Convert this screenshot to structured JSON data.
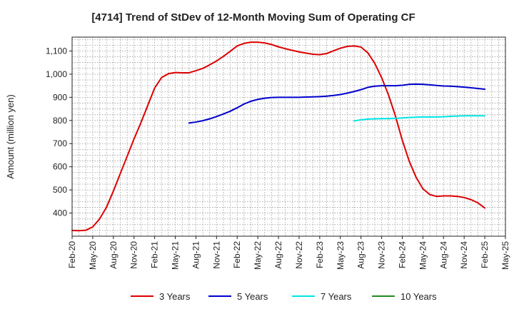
{
  "chart_data": {
    "type": "line",
    "title": "[4714]  Trend of StDev of 12-Month Moving Sum of Operating CF",
    "ylabel": "Amount (million yen)",
    "xlabel": "",
    "ylim": [
      300,
      1160
    ],
    "yticks": [
      400,
      500,
      600,
      700,
      800,
      900,
      1000,
      1100
    ],
    "ytick_labels": [
      "400",
      "500",
      "600",
      "700",
      "800",
      "900",
      "1,000",
      "1,100"
    ],
    "x_tick_labels": [
      "Feb-20",
      "May-20",
      "Aug-20",
      "Nov-20",
      "Feb-21",
      "May-21",
      "Aug-21",
      "Nov-21",
      "Feb-22",
      "May-22",
      "Aug-22",
      "Nov-22",
      "Feb-23",
      "May-23",
      "Aug-23",
      "Nov-23",
      "Feb-24",
      "May-24",
      "Aug-24",
      "Nov-24",
      "Feb-25",
      "May-25"
    ],
    "x_start": "Feb-20",
    "x_end": "May-25",
    "grid": true,
    "legend_position": "bottom",
    "series": [
      {
        "name": "3 Years",
        "color": "#dd0000",
        "x": [
          "Feb-20",
          "Mar-20",
          "Apr-20",
          "May-20",
          "Jun-20",
          "Jul-20",
          "Aug-20",
          "Sep-20",
          "Oct-20",
          "Nov-20",
          "Dec-20",
          "Jan-21",
          "Feb-21",
          "Mar-21",
          "Apr-21",
          "May-21",
          "Jun-21",
          "Jul-21",
          "Aug-21",
          "Sep-21",
          "Oct-21",
          "Nov-21",
          "Dec-21",
          "Jan-22",
          "Feb-22",
          "Mar-22",
          "Apr-22",
          "May-22",
          "Jun-22",
          "Jul-22",
          "Aug-22",
          "Sep-22",
          "Oct-22",
          "Nov-22",
          "Dec-22",
          "Jan-23",
          "Feb-23",
          "Mar-23",
          "Apr-23",
          "May-23",
          "Jun-23",
          "Jul-23",
          "Aug-23",
          "Sep-23",
          "Oct-23",
          "Nov-23",
          "Dec-23",
          "Jan-24",
          "Feb-24",
          "Mar-24",
          "Apr-24",
          "May-24",
          "Jun-24",
          "Jul-24",
          "Aug-24",
          "Sep-24",
          "Oct-24",
          "Nov-24",
          "Dec-24",
          "Jan-25",
          "Feb-25"
        ],
        "values": [
          325,
          324,
          326,
          340,
          375,
          425,
          495,
          570,
          645,
          720,
          790,
          865,
          940,
          985,
          1002,
          1007,
          1006,
          1006,
          1015,
          1025,
          1040,
          1057,
          1077,
          1099,
          1122,
          1133,
          1138,
          1138,
          1135,
          1128,
          1118,
          1110,
          1103,
          1096,
          1091,
          1086,
          1084,
          1089,
          1101,
          1112,
          1120,
          1122,
          1117,
          1092,
          1047,
          985,
          910,
          820,
          715,
          625,
          555,
          505,
          480,
          472,
          474,
          474,
          472,
          467,
          458,
          444,
          422
        ]
      },
      {
        "name": "5 Years",
        "color": "#0000cc",
        "x": [
          "Jul-21",
          "Aug-21",
          "Sep-21",
          "Oct-21",
          "Nov-21",
          "Dec-21",
          "Jan-22",
          "Feb-22",
          "Mar-22",
          "Apr-22",
          "May-22",
          "Jun-22",
          "Jul-22",
          "Aug-22",
          "Sep-22",
          "Oct-22",
          "Nov-22",
          "Dec-22",
          "Jan-23",
          "Feb-23",
          "Mar-23",
          "Apr-23",
          "May-23",
          "Jun-23",
          "Jul-23",
          "Aug-23",
          "Sep-23",
          "Oct-23",
          "Nov-23",
          "Dec-23",
          "Jan-24",
          "Feb-24",
          "Mar-24",
          "Apr-24",
          "May-24",
          "Jun-24",
          "Jul-24",
          "Aug-24",
          "Sep-24",
          "Oct-24",
          "Nov-24",
          "Dec-24",
          "Jan-25",
          "Feb-25"
        ],
        "values": [
          789,
          793,
          799,
          807,
          817,
          828,
          840,
          855,
          871,
          883,
          891,
          896,
          899,
          900,
          900,
          900,
          900,
          901,
          902,
          903,
          905,
          908,
          912,
          918,
          925,
          933,
          943,
          948,
          950,
          950,
          950,
          952,
          956,
          957,
          956,
          954,
          951,
          949,
          948,
          946,
          944,
          941,
          938,
          935
        ]
      },
      {
        "name": "7 Years",
        "color": "#00e5e5",
        "x": [
          "Jul-23",
          "Aug-23",
          "Sep-23",
          "Oct-23",
          "Nov-23",
          "Dec-23",
          "Jan-24",
          "Feb-24",
          "Mar-24",
          "Apr-24",
          "May-24",
          "Jun-24",
          "Jul-24",
          "Aug-24",
          "Sep-24",
          "Oct-24",
          "Nov-24",
          "Dec-24",
          "Jan-25",
          "Feb-25"
        ],
        "values": [
          798,
          803,
          806,
          807,
          808,
          808,
          809,
          811,
          813,
          814,
          815,
          815,
          815,
          816,
          818,
          819,
          820,
          820,
          820,
          820
        ]
      },
      {
        "name": "10 Years",
        "color": "#228b22",
        "x": [],
        "values": []
      }
    ]
  }
}
